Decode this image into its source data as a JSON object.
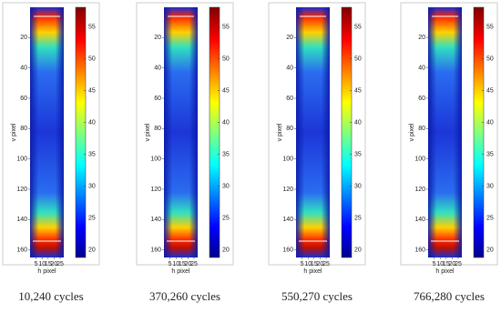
{
  "axes": {
    "ylabel": "v pixel",
    "xlabel": "h pixel",
    "ylim": [
      0,
      165
    ],
    "yticks": [
      20,
      40,
      60,
      80,
      100,
      120,
      140,
      160
    ],
    "xlim": [
      0,
      28
    ],
    "xticks": [
      5,
      10,
      15,
      20,
      25
    ],
    "clim": [
      18.8,
      58.1
    ],
    "cticks": [
      20,
      25,
      30,
      35,
      40,
      45,
      50,
      55
    ]
  },
  "panels": [
    {
      "caption": "10,240 cycles"
    },
    {
      "caption": "370,260 cycles"
    },
    {
      "caption": "550,270 cycles"
    },
    {
      "caption": "766,280 cycles"
    }
  ]
}
